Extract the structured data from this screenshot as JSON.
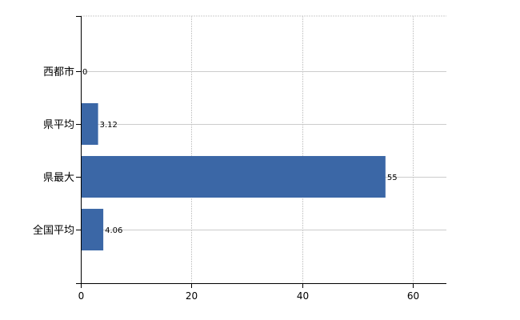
{
  "chart_data": {
    "type": "bar",
    "orientation": "horizontal",
    "categories": [
      "西都市",
      "県平均",
      "県最大",
      "全国平均"
    ],
    "values": [
      0,
      3.12,
      55,
      4.06
    ],
    "data_labels": [
      "0",
      "3.12",
      "55",
      "4.06"
    ],
    "xlim": [
      0,
      66
    ],
    "xticks": [
      "0",
      "20",
      "40",
      "60"
    ],
    "grid": true,
    "bar_color": "#3b67a6"
  }
}
